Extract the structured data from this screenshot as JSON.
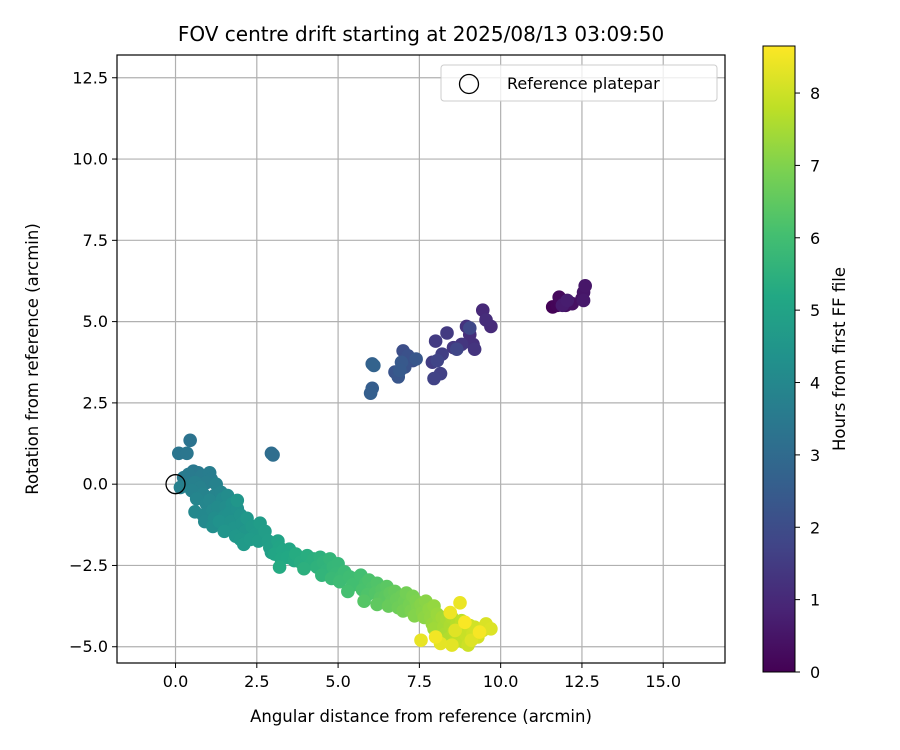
{
  "chart_data": {
    "type": "scatter",
    "title": "FOV centre drift starting at 2025/08/13 03:09:50",
    "xlabel": "Angular distance from reference (arcmin)",
    "ylabel": "Rotation from reference (arcmin)",
    "xlim": [
      -1.8,
      16.9
    ],
    "ylim": [
      -5.5,
      13.2
    ],
    "xticks": [
      0.0,
      2.5,
      5.0,
      7.5,
      10.0,
      12.5,
      15.0
    ],
    "yticks": [
      -5.0,
      -2.5,
      0.0,
      2.5,
      5.0,
      7.5,
      10.0,
      12.5
    ],
    "grid": true,
    "colormap": "viridis",
    "colorbar": {
      "label": "Hours from first FF file",
      "range": [
        0,
        8.65
      ],
      "ticks": [
        0,
        1,
        2,
        3,
        4,
        5,
        6,
        7,
        8
      ]
    },
    "legend": {
      "placement": "upper right",
      "entries": [
        {
          "label": "Reference platepar",
          "marker": "open-circle"
        }
      ]
    },
    "reference": {
      "x": 0.0,
      "y": 0.0
    },
    "points": [
      [
        11.6,
        5.45,
        0.05
      ],
      [
        11.75,
        5.5,
        0.1
      ],
      [
        11.85,
        5.55,
        0.15
      ],
      [
        11.8,
        5.75,
        0.2
      ],
      [
        11.95,
        5.6,
        0.25
      ],
      [
        12.0,
        5.5,
        0.3
      ],
      [
        12.1,
        5.6,
        0.35
      ],
      [
        12.2,
        5.55,
        0.4
      ],
      [
        12.5,
        5.7,
        0.45
      ],
      [
        12.55,
        5.9,
        0.5
      ],
      [
        12.6,
        6.1,
        0.55
      ],
      [
        12.55,
        5.65,
        0.6
      ],
      [
        11.9,
        5.5,
        0.65
      ],
      [
        12.05,
        5.65,
        0.7
      ],
      [
        9.45,
        5.35,
        1.0
      ],
      [
        9.7,
        4.85,
        1.05
      ],
      [
        9.55,
        5.05,
        1.1
      ],
      [
        9.05,
        4.6,
        1.15
      ],
      [
        9.15,
        4.3,
        1.2
      ],
      [
        8.95,
        4.85,
        1.25
      ],
      [
        9.2,
        4.15,
        1.3
      ],
      [
        8.8,
        4.3,
        1.35
      ],
      [
        8.55,
        4.2,
        1.4
      ],
      [
        8.35,
        4.65,
        1.45
      ],
      [
        8.0,
        4.4,
        1.5
      ],
      [
        7.9,
        3.75,
        1.55
      ],
      [
        8.2,
        4.0,
        1.6
      ],
      [
        8.15,
        3.4,
        1.65
      ],
      [
        7.95,
        3.25,
        1.7
      ],
      [
        8.05,
        3.8,
        1.75
      ],
      [
        8.65,
        4.15,
        1.8
      ],
      [
        9.05,
        4.8,
        1.85
      ],
      [
        7.0,
        4.1,
        2.05
      ],
      [
        7.3,
        3.8,
        2.1
      ],
      [
        7.15,
        3.95,
        2.15
      ],
      [
        7.05,
        3.6,
        2.2
      ],
      [
        6.75,
        3.45,
        2.25
      ],
      [
        6.85,
        3.3,
        2.3
      ],
      [
        7.4,
        3.85,
        2.35
      ],
      [
        6.95,
        3.75,
        2.4
      ],
      [
        6.9,
        3.5,
        2.45
      ],
      [
        6.05,
        2.95,
        2.55
      ],
      [
        6.0,
        2.8,
        2.6
      ],
      [
        6.05,
        3.7,
        2.65
      ],
      [
        6.1,
        3.65,
        2.75
      ],
      [
        2.95,
        0.95,
        3.05
      ],
      [
        3.0,
        0.9,
        3.1
      ],
      [
        0.45,
        1.35,
        3.3
      ],
      [
        0.1,
        0.95,
        3.35
      ],
      [
        0.35,
        0.95,
        3.4
      ],
      [
        0.55,
        0.4,
        3.45
      ],
      [
        0.7,
        0.35,
        3.5
      ],
      [
        0.25,
        0.2,
        3.55
      ],
      [
        0.4,
        0.3,
        3.58
      ],
      [
        0.8,
        0.25,
        3.6
      ],
      [
        1.05,
        0.35,
        3.62
      ],
      [
        1.1,
        0.15,
        3.65
      ],
      [
        0.95,
        0.05,
        3.68
      ],
      [
        0.3,
        -0.05,
        3.7
      ],
      [
        0.15,
        -0.1,
        3.72
      ],
      [
        0.6,
        0.05,
        3.75
      ],
      [
        0.75,
        -0.1,
        3.78
      ],
      [
        0.5,
        -0.2,
        3.8
      ],
      [
        1.25,
        0.0,
        3.82
      ],
      [
        0.85,
        -0.3,
        3.85
      ],
      [
        1.2,
        -0.35,
        3.88
      ],
      [
        0.65,
        -0.45,
        3.9
      ],
      [
        1.4,
        -0.25,
        3.92
      ],
      [
        0.95,
        -0.6,
        3.95
      ],
      [
        1.05,
        -0.5,
        3.98
      ],
      [
        0.6,
        -0.85,
        4.0
      ],
      [
        0.85,
        -0.95,
        4.02
      ],
      [
        0.9,
        -1.15,
        4.05
      ],
      [
        1.15,
        -0.8,
        4.08
      ],
      [
        1.45,
        -0.45,
        4.1
      ],
      [
        1.3,
        -0.7,
        4.12
      ],
      [
        1.6,
        -0.35,
        4.15
      ],
      [
        1.55,
        -0.7,
        4.18
      ],
      [
        1.2,
        -1.05,
        4.2
      ],
      [
        1.15,
        -1.3,
        4.22
      ],
      [
        1.5,
        -1.0,
        4.25
      ],
      [
        1.75,
        -0.6,
        4.28
      ],
      [
        1.65,
        -0.9,
        4.3
      ],
      [
        1.9,
        -0.75,
        4.32
      ],
      [
        1.35,
        -1.15,
        4.35
      ],
      [
        1.7,
        -1.15,
        4.38
      ],
      [
        2.0,
        -0.95,
        4.4
      ],
      [
        1.8,
        -1.35,
        4.42
      ],
      [
        2.05,
        -1.2,
        4.45
      ],
      [
        1.5,
        -1.45,
        4.48
      ],
      [
        1.9,
        -0.5,
        4.5
      ],
      [
        2.15,
        -1.45,
        4.52
      ],
      [
        1.85,
        -1.6,
        4.55
      ],
      [
        2.2,
        -1.05,
        4.58
      ],
      [
        2.0,
        -1.7,
        4.6
      ],
      [
        2.35,
        -1.3,
        4.62
      ],
      [
        2.45,
        -1.55,
        4.65
      ],
      [
        2.1,
        -1.85,
        4.68
      ],
      [
        2.3,
        -1.7,
        4.7
      ],
      [
        2.6,
        -1.2,
        4.72
      ],
      [
        2.55,
        -1.75,
        4.75
      ],
      [
        2.75,
        -1.45,
        4.78
      ],
      [
        2.85,
        -1.75,
        4.8
      ],
      [
        2.95,
        -2.1,
        4.82
      ],
      [
        2.9,
        -1.95,
        4.85
      ],
      [
        3.15,
        -1.75,
        5.0
      ],
      [
        3.2,
        -1.95,
        5.03
      ],
      [
        3.05,
        -2.15,
        5.06
      ],
      [
        3.3,
        -2.05,
        5.1
      ],
      [
        3.5,
        -2.0,
        5.13
      ],
      [
        3.25,
        -2.3,
        5.16
      ],
      [
        3.45,
        -2.25,
        5.2
      ],
      [
        3.65,
        -2.35,
        5.23
      ],
      [
        3.2,
        -2.55,
        5.26
      ],
      [
        3.7,
        -2.15,
        5.3
      ],
      [
        3.85,
        -2.4,
        5.33
      ],
      [
        4.05,
        -2.2,
        5.36
      ],
      [
        4.15,
        -2.45,
        5.4
      ],
      [
        4.25,
        -2.3,
        5.43
      ],
      [
        3.95,
        -2.6,
        5.46
      ],
      [
        4.45,
        -2.25,
        5.5
      ],
      [
        4.35,
        -2.55,
        5.53
      ],
      [
        4.55,
        -2.4,
        5.56
      ],
      [
        4.65,
        -2.65,
        5.6
      ],
      [
        4.5,
        -2.8,
        5.63
      ],
      [
        4.75,
        -2.3,
        5.66
      ],
      [
        4.85,
        -2.55,
        5.7
      ],
      [
        5.0,
        -2.45,
        5.73
      ],
      [
        4.95,
        -2.75,
        5.76
      ],
      [
        4.8,
        -2.9,
        5.8
      ],
      [
        5.1,
        -2.85,
        5.83
      ],
      [
        5.2,
        -2.7,
        5.86
      ],
      [
        5.05,
        -3.0,
        5.9
      ],
      [
        5.35,
        -2.85,
        5.93
      ],
      [
        5.55,
        -2.9,
        5.96
      ],
      [
        5.45,
        -3.1,
        6.0
      ],
      [
        5.7,
        -2.8,
        6.03
      ],
      [
        5.3,
        -3.3,
        6.06
      ],
      [
        5.85,
        -3.05,
        6.1
      ],
      [
        5.75,
        -3.25,
        6.13
      ],
      [
        5.95,
        -2.95,
        6.16
      ],
      [
        6.05,
        -3.2,
        6.2
      ],
      [
        5.9,
        -3.4,
        6.23
      ],
      [
        6.2,
        -3.05,
        6.26
      ],
      [
        6.15,
        -3.35,
        6.3
      ],
      [
        5.8,
        -3.6,
        6.33
      ],
      [
        6.35,
        -3.25,
        6.36
      ],
      [
        6.3,
        -3.5,
        6.4
      ],
      [
        6.5,
        -3.15,
        6.43
      ],
      [
        6.45,
        -3.45,
        6.46
      ],
      [
        6.2,
        -3.7,
        6.5
      ],
      [
        6.6,
        -3.35,
        6.53
      ],
      [
        6.65,
        -3.6,
        6.56
      ],
      [
        6.75,
        -3.3,
        6.6
      ],
      [
        6.55,
        -3.75,
        6.63
      ],
      [
        6.8,
        -3.55,
        6.66
      ],
      [
        6.95,
        -3.45,
        6.7
      ],
      [
        6.85,
        -3.8,
        6.73
      ],
      [
        7.05,
        -3.6,
        6.76
      ],
      [
        7.1,
        -3.35,
        6.8
      ],
      [
        7.0,
        -3.9,
        6.83
      ],
      [
        7.2,
        -3.7,
        6.86
      ],
      [
        7.3,
        -3.45,
        6.9
      ],
      [
        7.25,
        -3.9,
        6.93
      ],
      [
        7.4,
        -3.6,
        6.96
      ],
      [
        7.45,
        -3.8,
        7.0
      ],
      [
        7.35,
        -4.05,
        7.03
      ],
      [
        7.55,
        -3.7,
        7.06
      ],
      [
        7.6,
        -3.95,
        7.1
      ],
      [
        7.7,
        -3.6,
        7.13
      ],
      [
        7.65,
        -4.1,
        7.16
      ],
      [
        7.8,
        -3.85,
        7.2
      ],
      [
        7.85,
        -4.1,
        7.23
      ],
      [
        7.95,
        -3.75,
        7.26
      ],
      [
        7.9,
        -4.3,
        7.3
      ],
      [
        8.05,
        -4.0,
        7.33
      ],
      [
        8.1,
        -4.25,
        7.36
      ],
      [
        7.95,
        -4.45,
        7.4
      ],
      [
        8.2,
        -4.1,
        7.43
      ],
      [
        8.25,
        -4.4,
        7.46
      ],
      [
        8.35,
        -4.15,
        7.5
      ],
      [
        8.3,
        -4.6,
        7.53
      ],
      [
        8.45,
        -4.35,
        7.56
      ],
      [
        8.5,
        -4.1,
        7.6
      ],
      [
        8.4,
        -4.75,
        7.63
      ],
      [
        8.55,
        -4.55,
        7.66
      ],
      [
        8.65,
        -4.3,
        7.7
      ],
      [
        8.6,
        -4.85,
        7.73
      ],
      [
        8.75,
        -4.5,
        7.76
      ],
      [
        8.8,
        -4.2,
        7.8
      ],
      [
        8.7,
        -4.7,
        7.83
      ],
      [
        8.85,
        -4.85,
        7.86
      ],
      [
        8.9,
        -4.45,
        7.9
      ],
      [
        8.95,
        -4.65,
        7.93
      ],
      [
        9.05,
        -4.35,
        7.96
      ],
      [
        9.0,
        -4.95,
        8.0
      ],
      [
        9.15,
        -4.6,
        8.03
      ],
      [
        9.2,
        -4.4,
        8.06
      ],
      [
        9.3,
        -4.7,
        8.1
      ],
      [
        9.45,
        -4.5,
        8.13
      ],
      [
        9.55,
        -4.3,
        8.16
      ],
      [
        9.7,
        -4.45,
        8.2
      ],
      [
        9.1,
        -4.8,
        8.23
      ],
      [
        8.6,
        -4.5,
        8.26
      ],
      [
        8.5,
        -4.95,
        8.3
      ],
      [
        8.15,
        -4.9,
        8.33
      ],
      [
        7.55,
        -4.8,
        8.36
      ],
      [
        8.75,
        -3.65,
        8.4
      ],
      [
        8.45,
        -3.95,
        8.45
      ],
      [
        8.0,
        -4.7,
        8.5
      ],
      [
        9.35,
        -4.55,
        8.55
      ],
      [
        8.9,
        -4.25,
        8.6
      ]
    ]
  }
}
